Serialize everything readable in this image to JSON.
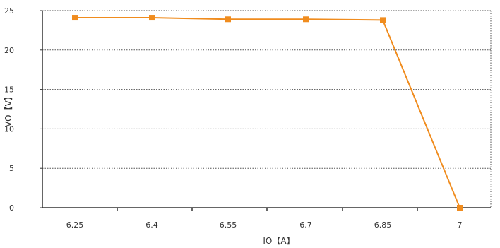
{
  "chart_data": {
    "type": "line",
    "title": "",
    "xlabel": "IO【A】",
    "ylabel": "VO【V】",
    "categories": [
      "6.25",
      "6.4",
      "6.55",
      "6.7",
      "6.85",
      "7"
    ],
    "series": [
      {
        "values": [
          24.1,
          24.1,
          23.9,
          23.9,
          23.8,
          0
        ]
      }
    ],
    "ylim": [
      0,
      25
    ],
    "yticks": [
      "0",
      "5",
      "10",
      "15",
      "20",
      "25"
    ],
    "grid": true,
    "legend": "none"
  },
  "colors": {
    "series": "#F08C1E",
    "grid": "#555555",
    "axis": "#333333",
    "text": "#333333"
  }
}
